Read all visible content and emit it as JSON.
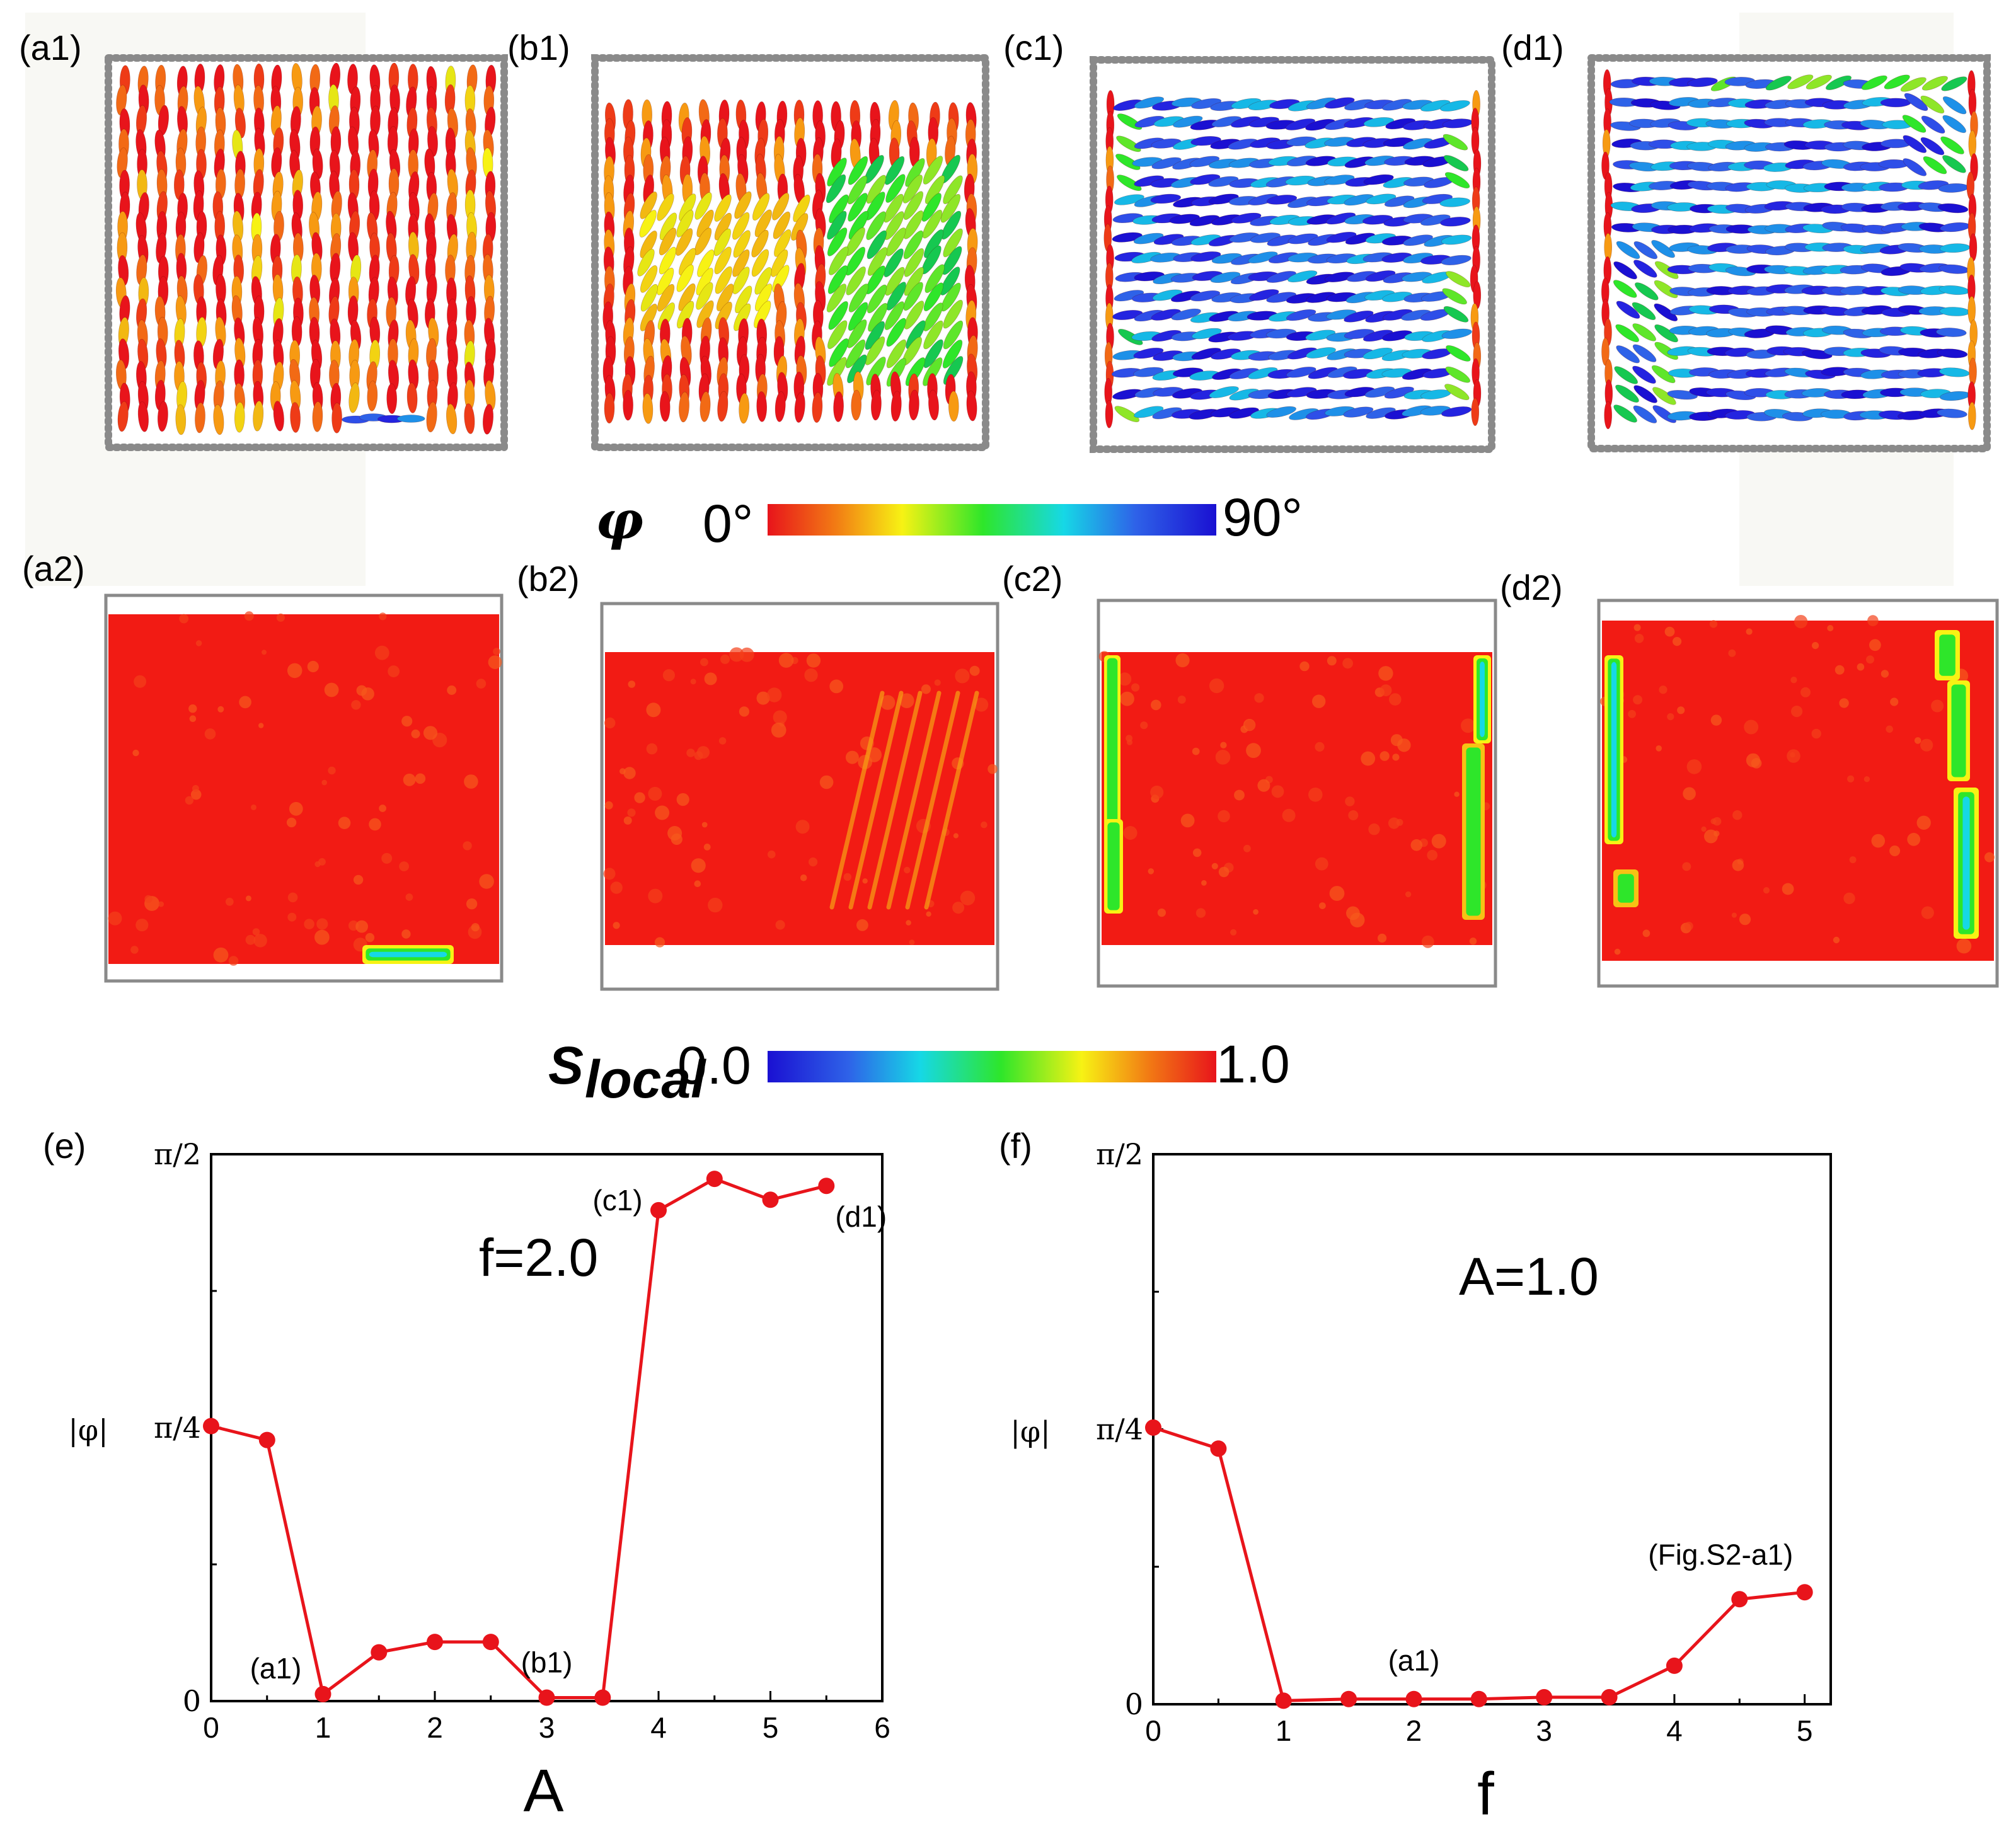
{
  "panels_top": [
    {
      "label": "(a1)",
      "theme": "red"
    },
    {
      "label": "(b1)",
      "theme": "mixed"
    },
    {
      "label": "(c1)",
      "theme": "blue"
    },
    {
      "label": "(d1)",
      "theme": "blue"
    }
  ],
  "colorbar_phi": {
    "symbol": "φ",
    "min_label": "0°",
    "max_label": "90°"
  },
  "panels_mid": [
    {
      "label": "(a2)"
    },
    {
      "label": "(b2)"
    },
    {
      "label": "(c2)"
    },
    {
      "label": "(d2)"
    }
  ],
  "colorbar_s": {
    "symbol": "S",
    "subscript": "local",
    "min_label": "0.0",
    "max_label": "1.0"
  },
  "chart_data": [
    {
      "type": "line",
      "panel": "(e)",
      "annotation": "f=2.0",
      "xlabel": "A",
      "ylabel": "|φ|",
      "xlim": [
        0,
        6
      ],
      "ylim": [
        0,
        1.5708
      ],
      "xticks": [
        0,
        1,
        2,
        3,
        4,
        5,
        6
      ],
      "yticks": [
        {
          "value": 0,
          "label": "0"
        },
        {
          "value": 0.7854,
          "label": "π/4"
        },
        {
          "value": 1.5708,
          "label": "π/2"
        }
      ],
      "x": [
        0,
        0.5,
        1,
        1.5,
        2,
        2.5,
        3,
        3.5,
        4,
        4.5,
        5,
        5.5
      ],
      "y": [
        0.79,
        0.75,
        0.02,
        0.14,
        0.17,
        0.17,
        0.01,
        0.01,
        1.41,
        1.5,
        1.44,
        1.48
      ],
      "point_labels": [
        {
          "index": 2,
          "text": "(a1)"
        },
        {
          "index": 6,
          "text": "(b1)"
        },
        {
          "index": 8,
          "text": "(c1)"
        },
        {
          "index": 11,
          "text": "(d1)"
        }
      ],
      "color": "#e8141b"
    },
    {
      "type": "line",
      "panel": "(f)",
      "annotation": "A=1.0",
      "xlabel": "f",
      "ylabel": "|φ|",
      "xlim": [
        0,
        5.2
      ],
      "ylim": [
        0,
        1.5708
      ],
      "xticks": [
        0,
        1,
        2,
        3,
        4,
        5
      ],
      "yticks": [
        {
          "value": 0,
          "label": "0"
        },
        {
          "value": 0.7854,
          "label": "π/4"
        },
        {
          "value": 1.5708,
          "label": "π/2"
        }
      ],
      "x": [
        0,
        0.5,
        1,
        1.5,
        2,
        2.5,
        3,
        3.5,
        4,
        4.5,
        5
      ],
      "y": [
        0.79,
        0.73,
        0.01,
        0.015,
        0.015,
        0.015,
        0.02,
        0.02,
        0.11,
        0.3,
        0.32
      ],
      "point_labels": [
        {
          "index": 4,
          "text": "(a1)"
        },
        {
          "index": 9,
          "text": "(Fig.S2-a1)"
        }
      ],
      "color": "#e8141b"
    }
  ]
}
